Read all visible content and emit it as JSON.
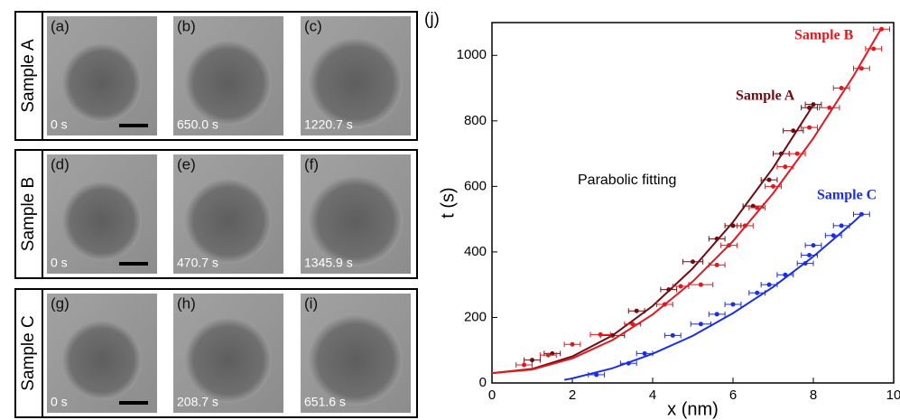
{
  "panels": [
    {
      "sample": "Sample A",
      "images": [
        {
          "label": "(a)",
          "time": "0 s"
        },
        {
          "label": "(b)",
          "time": "650.0 s"
        },
        {
          "label": "(c)",
          "time": "1220.7 s"
        }
      ]
    },
    {
      "sample": "Sample B",
      "images": [
        {
          "label": "(d)",
          "time": "0 s"
        },
        {
          "label": "(e)",
          "time": "470.7 s"
        },
        {
          "label": "(f)",
          "time": "1345.9 s"
        }
      ]
    },
    {
      "sample": "Sample C",
      "images": [
        {
          "label": "(g)",
          "time": "0 s"
        },
        {
          "label": "(h)",
          "time": "208.7 s"
        },
        {
          "label": "(i)",
          "time": "651.6 s"
        }
      ]
    }
  ],
  "chart_label": "(j)",
  "chart_data": {
    "type": "scatter",
    "x_label": "x (nm)",
    "y_label": "t (s)",
    "annotation": "Parabolic fitting",
    "xlim": [
      0,
      10
    ],
    "ylim": [
      0,
      1100
    ],
    "xticks": [
      0,
      2,
      4,
      6,
      8,
      10
    ],
    "yticks": [
      0,
      200,
      400,
      600,
      800,
      1000
    ],
    "series": [
      {
        "name": "Sample A",
        "color": "#6e0c12",
        "x": [
          1.0,
          1.5,
          3.0,
          3.6,
          4.4,
          5.0,
          5.6,
          6.0,
          6.5,
          6.9,
          7.2,
          7.5,
          7.9,
          8.0
        ],
        "values": [
          70,
          90,
          145,
          220,
          285,
          370,
          440,
          480,
          540,
          620,
          700,
          770,
          840,
          850
        ],
        "xerr": [
          0.2,
          0.2,
          0.3,
          0.2,
          0.2,
          0.25,
          0.2,
          0.2,
          0.25,
          0.2,
          0.2,
          0.25,
          0.2,
          0.2
        ],
        "fit": {
          "x": [
            0,
            1,
            2,
            3,
            4,
            5,
            6,
            7,
            8
          ],
          "values": [
            30,
            43,
            81,
            145,
            235,
            350,
            491,
            657,
            849
          ]
        }
      },
      {
        "name": "Sample B",
        "color": "#e5161e",
        "x": [
          0.8,
          1.4,
          2.0,
          2.7,
          3.5,
          4.3,
          4.7,
          5.2,
          5.6,
          5.9,
          6.3,
          6.6,
          7.0,
          7.3,
          7.6,
          7.9,
          8.4,
          8.7,
          9.2,
          9.5,
          9.7
        ],
        "values": [
          55,
          85,
          118,
          148,
          180,
          240,
          295,
          300,
          360,
          420,
          480,
          535,
          600,
          660,
          700,
          780,
          840,
          900,
          960,
          1020,
          1080
        ],
        "xerr": [
          0.2,
          0.2,
          0.2,
          0.25,
          0.2,
          0.2,
          0.2,
          0.3,
          0.2,
          0.2,
          0.2,
          0.2,
          0.2,
          0.2,
          0.2,
          0.2,
          0.25,
          0.2,
          0.2,
          0.2,
          0.2
        ],
        "fit": {
          "x": [
            0,
            1,
            2,
            3,
            4,
            5,
            6,
            7,
            8,
            9,
            9.7
          ],
          "values": [
            30,
            41,
            75,
            131,
            209,
            310,
            433,
            579,
            747,
            937,
            1084
          ]
        }
      },
      {
        "name": "Sample C",
        "color": "#1a2ee6",
        "x": [
          2.6,
          3.4,
          3.8,
          4.5,
          5.2,
          5.6,
          6.0,
          6.6,
          6.9,
          7.3,
          7.8,
          7.9,
          8.0,
          8.5,
          8.7,
          9.2
        ],
        "values": [
          25,
          60,
          90,
          145,
          180,
          210,
          240,
          275,
          300,
          330,
          365,
          390,
          420,
          450,
          480,
          515
        ],
        "xerr": [
          0.2,
          0.2,
          0.2,
          0.2,
          0.25,
          0.2,
          0.2,
          0.2,
          0.2,
          0.2,
          0.2,
          0.2,
          0.2,
          0.2,
          0.2,
          0.2
        ],
        "fit": {
          "x": [
            1.8,
            2,
            3,
            4,
            5,
            6,
            7,
            8,
            9,
            9.2
          ],
          "values": [
            9.5,
            14,
            45,
            89,
            144,
            213,
            293,
            386,
            491,
            514
          ]
        }
      }
    ]
  }
}
